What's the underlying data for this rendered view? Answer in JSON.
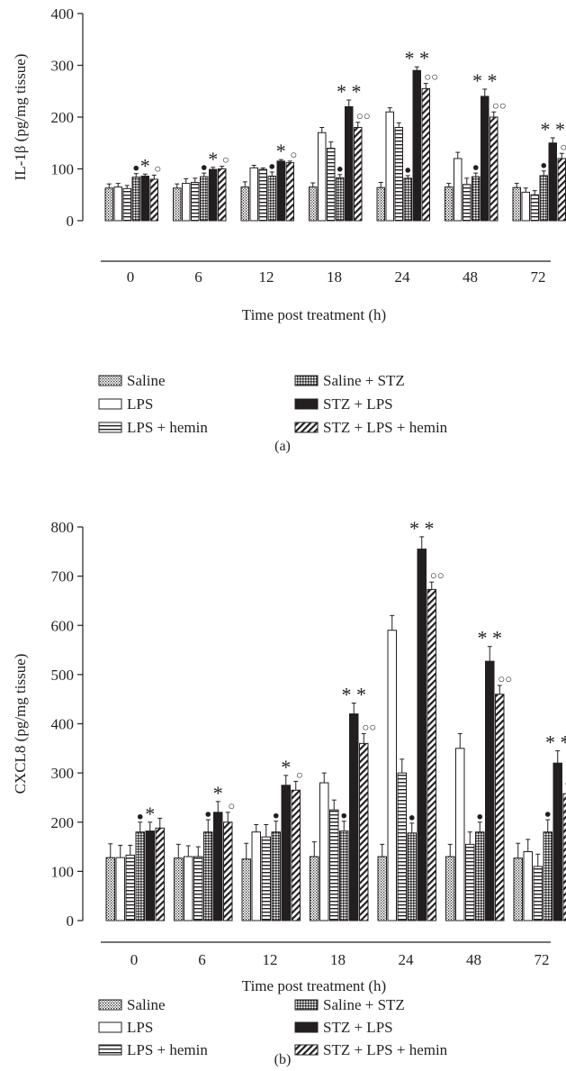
{
  "chart_data": [
    {
      "type": "bar",
      "panel_label": "(a)",
      "ylabel": "IL-1β (pg/mg tissue)",
      "xlabel": "Time post treatment (h)",
      "ylim": [
        0,
        400
      ],
      "yticks": [
        0,
        100,
        200,
        300,
        400
      ],
      "categories": [
        "0",
        "6",
        "12",
        "18",
        "24",
        "48",
        "72"
      ],
      "series": [
        {
          "name": "Saline",
          "pattern": "saline",
          "values": [
            63,
            63,
            65,
            65,
            64,
            65,
            64
          ],
          "errors": [
            8,
            8,
            10,
            8,
            10,
            7,
            8
          ]
        },
        {
          "name": "LPS",
          "pattern": "lps",
          "values": [
            65,
            72,
            102,
            170,
            210,
            120,
            55
          ],
          "errors": [
            7,
            9,
            5,
            10,
            8,
            12,
            8
          ]
        },
        {
          "name": "LPS + hemin",
          "pattern": "hemin",
          "values": [
            62,
            74,
            99,
            140,
            180,
            70,
            50
          ],
          "errors": [
            6,
            8,
            3,
            12,
            9,
            12,
            8
          ]
        },
        {
          "name": "Saline + STZ",
          "pattern": "stz",
          "values": [
            84,
            85,
            86,
            83,
            82,
            85,
            87
          ],
          "errors": [
            7,
            7,
            8,
            6,
            5,
            7,
            9
          ]
        },
        {
          "name": "STZ + LPS",
          "pattern": "black",
          "values": [
            86,
            99,
            115,
            220,
            290,
            240,
            150
          ],
          "errors": [
            4,
            4,
            3,
            13,
            7,
            14,
            10
          ]
        },
        {
          "name": "STZ + LPS + hemin",
          "pattern": "diag",
          "values": [
            80,
            100,
            112,
            180,
            255,
            200,
            120
          ],
          "errors": [
            8,
            5,
            3,
            10,
            10,
            10,
            10
          ]
        }
      ],
      "annotations": [
        {
          "category": "0",
          "dot": true,
          "stars": "*",
          "circles": "○"
        },
        {
          "category": "6",
          "dot": true,
          "stars": "*",
          "circles": "○"
        },
        {
          "category": "12",
          "dot": true,
          "stars": "*",
          "circles": "○"
        },
        {
          "category": "18",
          "dot": true,
          "stars": "**",
          "circles": "○○"
        },
        {
          "category": "24",
          "dot": true,
          "stars": "**",
          "circles": "○○"
        },
        {
          "category": "48",
          "dot": true,
          "stars": "**",
          "circles": "○○"
        },
        {
          "category": "72",
          "dot": true,
          "stars": "**",
          "circles": "○○"
        }
      ],
      "legend": [
        [
          "Saline",
          "Saline + STZ"
        ],
        [
          "LPS",
          "STZ + LPS"
        ],
        [
          "LPS + hemin",
          "STZ + LPS + hemin"
        ]
      ]
    },
    {
      "type": "bar",
      "panel_label": "(b)",
      "ylabel": "CXCL8 (pg/mg tissue)",
      "xlabel": "Time post treatment (h)",
      "ylim": [
        0,
        800
      ],
      "yticks": [
        0,
        100,
        200,
        300,
        400,
        500,
        600,
        700,
        800
      ],
      "categories": [
        "0",
        "6",
        "12",
        "18",
        "24",
        "48",
        "72"
      ],
      "series": [
        {
          "name": "Saline",
          "pattern": "saline",
          "values": [
            128,
            127,
            125,
            130,
            130,
            130,
            127
          ],
          "errors": [
            28,
            28,
            32,
            30,
            25,
            25,
            30
          ]
        },
        {
          "name": "LPS",
          "pattern": "lps",
          "values": [
            128,
            130,
            180,
            280,
            590,
            350,
            140
          ],
          "errors": [
            25,
            22,
            15,
            20,
            30,
            30,
            25
          ]
        },
        {
          "name": "LPS + hemin",
          "pattern": "hemin",
          "values": [
            133,
            130,
            170,
            225,
            300,
            155,
            110
          ],
          "errors": [
            20,
            20,
            25,
            20,
            28,
            25,
            25
          ]
        },
        {
          "name": "Saline + STZ",
          "pattern": "stz",
          "values": [
            180,
            180,
            180,
            182,
            178,
            180,
            180
          ],
          "errors": [
            20,
            25,
            22,
            20,
            20,
            20,
            25
          ]
        },
        {
          "name": "STZ + LPS",
          "pattern": "black",
          "values": [
            182,
            220,
            275,
            420,
            755,
            527,
            320
          ],
          "errors": [
            18,
            22,
            20,
            22,
            25,
            30,
            25
          ]
        },
        {
          "name": "STZ + LPS + hemin",
          "pattern": "diag",
          "values": [
            188,
            200,
            265,
            360,
            673,
            460,
            258
          ],
          "errors": [
            20,
            20,
            18,
            20,
            15,
            18,
            20
          ]
        }
      ],
      "annotations": [
        {
          "category": "0",
          "dot": true,
          "stars": "*",
          "circles": ""
        },
        {
          "category": "6",
          "dot": true,
          "stars": "*",
          "circles": "○"
        },
        {
          "category": "12",
          "dot": true,
          "stars": "*",
          "circles": "○"
        },
        {
          "category": "18",
          "dot": true,
          "stars": "**",
          "circles": "○○"
        },
        {
          "category": "24",
          "dot": true,
          "stars": "**",
          "circles": "○○"
        },
        {
          "category": "48",
          "dot": true,
          "stars": "**",
          "circles": "○○"
        },
        {
          "category": "72",
          "dot": true,
          "stars": "**",
          "circles": "○○"
        }
      ],
      "legend": [
        [
          "Saline",
          "Saline + STZ"
        ],
        [
          "LPS",
          "STZ + LPS"
        ],
        [
          "LPS + hemin",
          "STZ + LPS + hemin"
        ]
      ]
    }
  ],
  "colors": {
    "ink": "#231f20",
    "background": "#ffffff"
  }
}
